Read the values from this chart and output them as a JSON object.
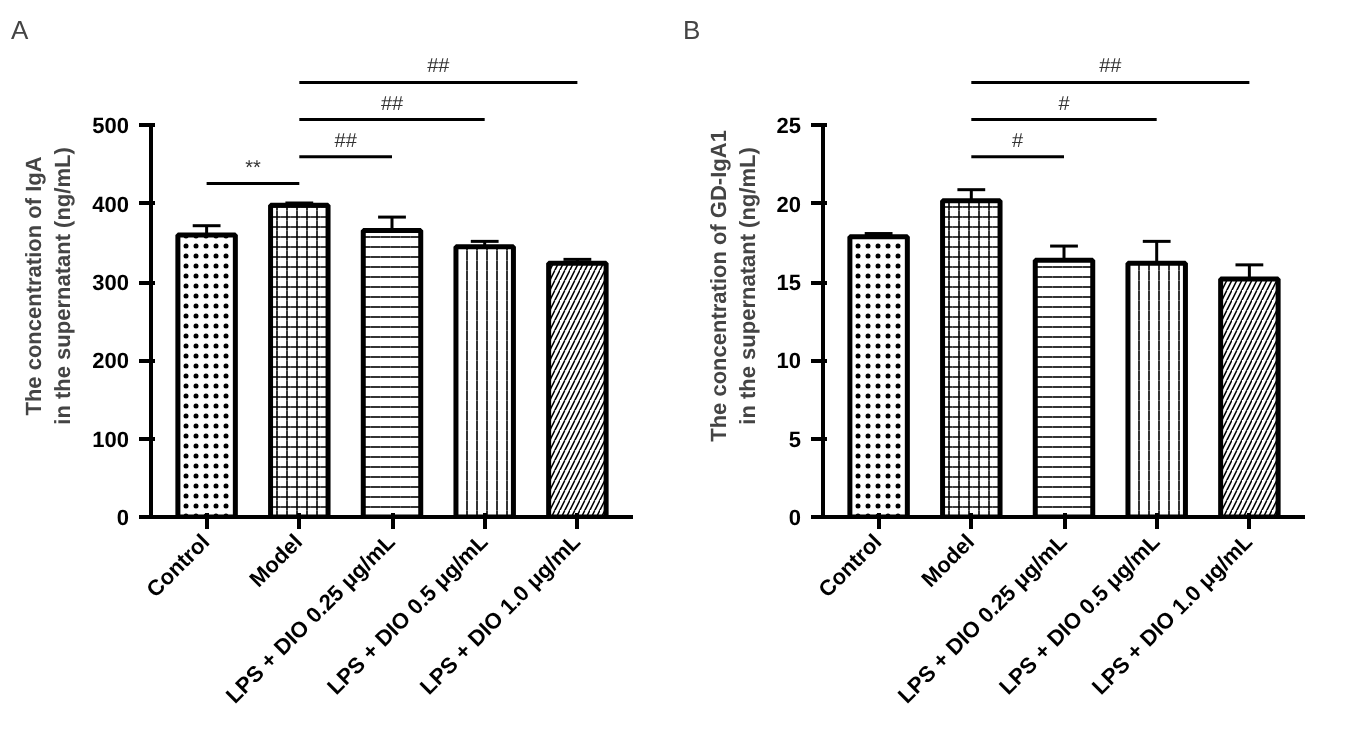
{
  "chart_data": [
    {
      "type": "bar",
      "title": "A",
      "ylabel": "The concentration of IgA\nin the supernatant (ng/mL)",
      "categories": [
        "Control",
        "Model",
        "LPS + DIO 0.25 μg/mL",
        "LPS + DIO 0.5 μg/mL",
        "LPS + DIO 1.0 μg/mL"
      ],
      "values": [
        360,
        398,
        366,
        345,
        324
      ],
      "errors": [
        12,
        3,
        17,
        7,
        5
      ],
      "colors": [
        "#ffffff",
        "#ffffff",
        "#ffffff",
        "#ffffff",
        "#ffffff"
      ],
      "ylim": [
        0,
        500
      ],
      "yticks": [
        0,
        100,
        200,
        300,
        400,
        500
      ],
      "grid": false,
      "annotations": [
        "**",
        "##",
        "##",
        "##"
      ]
    },
    {
      "type": "bar",
      "title": "B",
      "ylabel": "The concentration of GD-IgA1\nin the supernatant (ng/mL)",
      "categories": [
        "Control",
        "Model",
        "LPS + DIO 0.25 μg/mL",
        "LPS + DIO 0.5 μg/mL",
        "LPS + DIO 1.0 μg/mL"
      ],
      "values": [
        17.9,
        20.2,
        16.4,
        16.2,
        15.2
      ],
      "errors": [
        0.2,
        0.7,
        0.9,
        1.4,
        0.9
      ],
      "colors": [
        "#ffffff",
        "#ffffff",
        "#ffffff",
        "#ffffff",
        "#ffffff"
      ],
      "ylim": [
        0,
        25
      ],
      "yticks": [
        0,
        5,
        10,
        15,
        20,
        25
      ],
      "grid": false,
      "annotations": [
        "#",
        "#",
        "##"
      ]
    }
  ]
}
